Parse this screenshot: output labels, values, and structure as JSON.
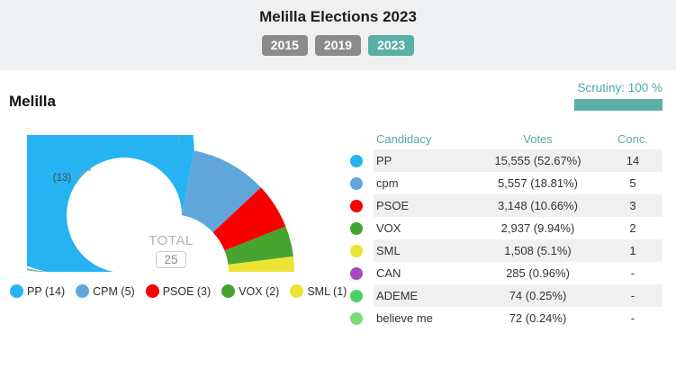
{
  "page": {
    "title": "Melilla Elections 2023"
  },
  "tabs": [
    {
      "label": "2015",
      "active": false
    },
    {
      "label": "2019",
      "active": false
    },
    {
      "label": "2023",
      "active": true
    }
  ],
  "region": {
    "title": "Melilla"
  },
  "scrutiny": {
    "label": "Scrutiny: 100 %",
    "percent": 100
  },
  "colors": {
    "accent": "#58afa5",
    "tab_inactive": "#8b8b8b",
    "header_band": "#eff0f1",
    "row_stripe": "#f0f0f0",
    "majority_arc": "#77ad9f"
  },
  "chart_data": {
    "type": "pie",
    "layout": "half-donut",
    "title": "Melilla",
    "total_label": "TOTAL",
    "total_value": "25",
    "total_seats": 25,
    "majority_label": "(13)",
    "majority_seats": 13,
    "majority_color": "#77ad9f",
    "legend_position": "bottom",
    "series": [
      {
        "name": "PP",
        "seats": 14,
        "color": "#25b3f2",
        "legend_label": "PP (14)"
      },
      {
        "name": "CPM",
        "seats": 5,
        "color": "#61a6db",
        "legend_label": "CPM (5)"
      },
      {
        "name": "PSOE",
        "seats": 3,
        "color": "#f80000",
        "legend_label": "PSOE (3)"
      },
      {
        "name": "VOX",
        "seats": 2,
        "color": "#46a42f",
        "legend_label": "VOX (2)"
      },
      {
        "name": "SML",
        "seats": 1,
        "color": "#ece334",
        "legend_label": "SML (1)"
      }
    ]
  },
  "table": {
    "headers": {
      "candidacy": "Candidacy",
      "votes": "Votes",
      "conc": "Conc."
    },
    "rows": [
      {
        "party": "PP",
        "color": "#25b3f2",
        "votes": "15,555 (52.67%)",
        "conc": "14"
      },
      {
        "party": "cpm",
        "color": "#61a6db",
        "votes": "5,557 (18.81%)",
        "conc": "5"
      },
      {
        "party": "PSOE",
        "color": "#f80000",
        "votes": "3,148 (10.66%)",
        "conc": "3"
      },
      {
        "party": "VOX",
        "color": "#46a42f",
        "votes": "2,937 (9.94%)",
        "conc": "2"
      },
      {
        "party": "SML",
        "color": "#ece334",
        "votes": "1,508 (5.1%)",
        "conc": "1"
      },
      {
        "party": "CAN",
        "color": "#ab47bc",
        "votes": "285 (0.96%)",
        "conc": "-"
      },
      {
        "party": "ADEME",
        "color": "#4cd062",
        "votes": "74 (0.25%)",
        "conc": "-"
      },
      {
        "party": "believe me",
        "color": "#77dc74",
        "votes": "72 (0.24%)",
        "conc": "-"
      }
    ]
  }
}
